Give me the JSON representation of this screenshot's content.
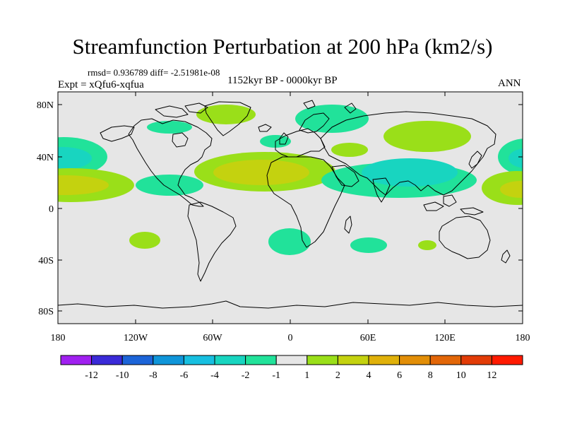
{
  "title": "Streamfunction Perturbation at 200 hPa (km2/s)",
  "stats": "rmsd= 0.936789 diff= -2.51981e-08",
  "period": "1152kyr BP - 0000kyr BP",
  "experiment": "Expt = xQfu6-xqfua",
  "season": "ANN",
  "lat_labels": [
    "80N",
    "40N",
    "0",
    "40S",
    "80S"
  ],
  "lon_labels": [
    "180",
    "120W",
    "60W",
    "0",
    "60E",
    "120E",
    "180"
  ],
  "colorbar": {
    "labels": [
      "-12",
      "-10",
      "-8",
      "-6",
      "-4",
      "-2",
      "-1",
      "1",
      "2",
      "4",
      "6",
      "8",
      "10",
      "12"
    ],
    "colors": [
      "#a020f0",
      "#3a2ad8",
      "#1c64d8",
      "#0f95d9",
      "#17bfe0",
      "#18d5c0",
      "#21e29a",
      "#e6e6e6",
      "#9adf19",
      "#c4d20f",
      "#e0b10a",
      "#e28e07",
      "#e26608",
      "#e23c07",
      "#ff1a00"
    ]
  },
  "shading_colors": {
    "neutral": "#e6e6e6",
    "neg1": "#21e29a",
    "neg2": "#18d5c0",
    "pos1": "#9adf19",
    "pos2": "#c4d20f"
  }
}
